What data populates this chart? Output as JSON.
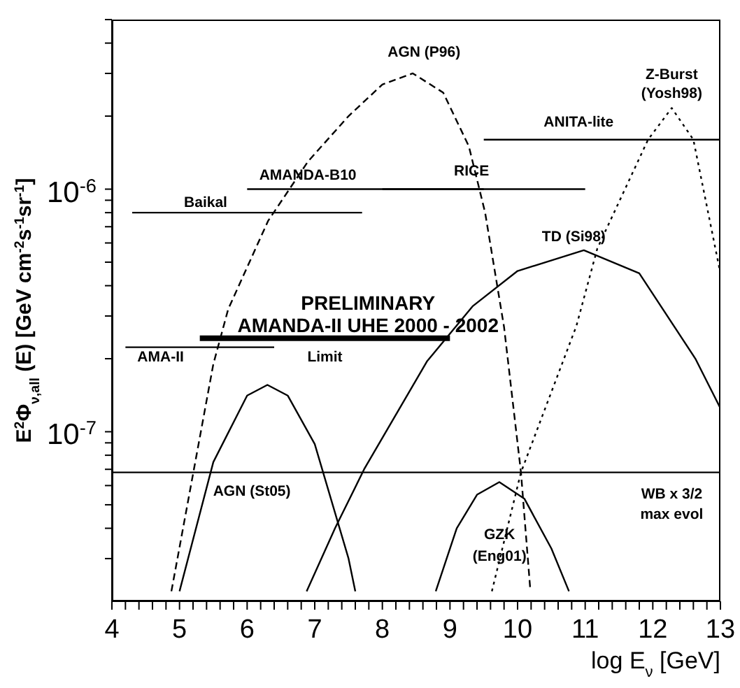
{
  "chart_data": {
    "type": "line",
    "xlabel": "log E$_{ν}$ [GeV]",
    "ylabel": "E$^{2}$Φ$_{ν,all}$ (E) [GeV cm$^{-2}$s$^{-1}$sr$^{-1}$]",
    "log": "y",
    "xlim": [
      4,
      13
    ],
    "xticks": [
      4,
      {
        "value": 4.2,
        "label": null
      },
      {
        "value": 4.4,
        "label": null
      },
      {
        "value": 4.6,
        "label": null
      },
      {
        "value": 4.8,
        "label": null
      },
      5,
      {
        "value": 5.2,
        "label": null
      },
      {
        "value": 5.4,
        "label": null
      },
      {
        "value": 5.6,
        "label": null
      },
      {
        "value": 5.8,
        "label": null
      },
      6,
      {
        "value": 6.2,
        "label": null
      },
      {
        "value": 6.4,
        "label": null
      },
      {
        "value": 6.6,
        "label": null
      },
      {
        "value": 6.8,
        "label": null
      },
      7,
      {
        "value": 7.2,
        "label": null
      },
      {
        "value": 7.4,
        "label": null
      },
      {
        "value": 7.6,
        "label": null
      },
      {
        "value": 7.8,
        "label": null
      },
      8,
      {
        "value": 8.2,
        "label": null
      },
      {
        "value": 8.4,
        "label": null
      },
      {
        "value": 8.6,
        "label": null
      },
      {
        "value": 8.8,
        "label": null
      },
      9,
      {
        "value": 9.2,
        "label": null
      },
      {
        "value": 9.4,
        "label": null
      },
      {
        "value": 9.6,
        "label": null
      },
      {
        "value": 9.8,
        "label": null
      },
      10,
      {
        "value": 10.2,
        "label": null
      },
      {
        "value": 10.4,
        "label": null
      },
      {
        "value": 10.6,
        "label": null
      },
      {
        "value": 10.8,
        "label": null
      },
      11,
      {
        "value": 11.2,
        "label": null
      },
      {
        "value": 11.4,
        "label": null
      },
      {
        "value": 11.6,
        "label": null
      },
      {
        "value": 11.8,
        "label": null
      },
      12,
      {
        "value": 12.2,
        "label": null
      },
      {
        "value": 12.4,
        "label": null
      },
      {
        "value": 12.6,
        "label": null
      },
      {
        "value": 12.8,
        "label": null
      },
      13
    ],
    "ylim": [
      2e-08,
      5e-06
    ],
    "yticks": [
      {
        "value": 3e-08,
        "label": null
      },
      {
        "value": 4e-08,
        "label": null
      },
      {
        "value": 5e-08,
        "label": null
      },
      {
        "value": 6e-08,
        "label": null
      },
      {
        "value": 7e-08,
        "label": null
      },
      {
        "value": 8e-08,
        "label": null
      },
      {
        "value": 9e-08,
        "label": null
      },
      {
        "value": 1e-07,
        "label": "10$^{-7}$"
      },
      {
        "value": 2e-07,
        "label": null
      },
      {
        "value": 3e-07,
        "label": null
      },
      {
        "value": 4e-07,
        "label": null
      },
      {
        "value": 5e-07,
        "label": null
      },
      {
        "value": 6e-07,
        "label": null
      },
      {
        "value": 7e-07,
        "label": null
      },
      {
        "value": 8e-07,
        "label": null
      },
      {
        "value": 9e-07,
        "label": null
      },
      {
        "value": 1e-06,
        "label": "10$^{-6}$"
      },
      {
        "value": 2e-06,
        "label": null
      },
      {
        "value": 3e-06,
        "label": null
      },
      {
        "value": 4e-06,
        "label": null
      },
      {
        "value": 5e-06,
        "label": null
      }
    ],
    "series": [
      {
        "line_style": "solid",
        "color": "#000000",
        "x": [
          5.3,
          9.0
        ],
        "values": [
          2.43e-07,
          2.43e-07
        ]
      },
      {
        "line_style": "solid",
        "color": "#000000",
        "x": [
          4.3,
          7.7
        ],
        "values": [
          8e-07,
          8e-07
        ]
      },
      {
        "line_style": "solid",
        "color": "#000000",
        "x": [
          6.0,
          9.5
        ],
        "values": [
          1e-06,
          1e-06
        ]
      },
      {
        "line_style": "solid",
        "color": "#000000",
        "x": [
          8.0,
          11.0
        ],
        "values": [
          1e-06,
          1e-06
        ]
      },
      {
        "line_style": "solid",
        "color": "#000000",
        "x": [
          9.5,
          13
        ],
        "values": [
          1.6e-06,
          1.6e-06
        ]
      },
      {
        "line_style": "solid",
        "color": "#000000",
        "x": [
          4.2,
          6.4
        ],
        "values": [
          2.23e-07,
          2.23e-07
        ]
      },
      {
        "line_style": "solid",
        "color": "#000000",
        "x": [
          4,
          13
        ],
        "values": [
          6.8e-08,
          6.8e-08
        ]
      },
      {
        "line_style": "solid",
        "color": "#000000",
        "x": [
          5.0,
          5.5,
          6.0,
          6.3,
          6.6,
          7.0,
          7.5,
          7.6
        ],
        "values": [
          2.2e-08,
          7.5e-08,
          1.41e-07,
          1.56e-07,
          1.41e-07,
          8.9e-08,
          3e-08,
          2.2e-08
        ]
      },
      {
        "line_style": "dashed",
        "color": "#000000",
        "x": [
          4.88,
          5.5,
          5.72,
          6.31,
          6.9,
          7.5,
          8.0,
          8.45,
          8.9,
          9.28,
          9.52,
          9.8,
          10.05,
          10.19
        ],
        "values": [
          2.2e-08,
          1.9e-07,
          3.2e-07,
          7.4e-07,
          1.3e-06,
          2e-06,
          2.7e-06,
          3e-06,
          2.5e-06,
          1.5e-06,
          8e-07,
          2.7e-07,
          6.8e-08,
          2.2e-08
        ]
      },
      {
        "line_style": "solid",
        "color": "#000000",
        "x": [
          6.88,
          7.3,
          7.73,
          8.66,
          9.34,
          10.0,
          10.98,
          11.8,
          12.63,
          13
        ],
        "values": [
          2.2e-08,
          4e-08,
          7e-08,
          1.95e-07,
          3.3e-07,
          4.6e-07,
          5.6e-07,
          4.5e-07,
          2e-07,
          1.25e-07
        ]
      },
      {
        "line_style": "solid",
        "color": "#000000",
        "x": [
          8.79,
          9.1,
          9.4,
          9.73,
          10.1,
          10.5,
          10.76
        ],
        "values": [
          2.2e-08,
          4e-08,
          5.5e-08,
          6.2e-08,
          5.3e-08,
          3.3e-08,
          2.2e-08
        ]
      },
      {
        "line_style": "dotted",
        "color": "#000000",
        "x": [
          9.62,
          10.05,
          10.87,
          11.18,
          11.93,
          12.28,
          12.6,
          13
        ],
        "values": [
          2.2e-08,
          6.8e-08,
          2.73e-07,
          5.7e-07,
          1.6e-06,
          2.16e-06,
          1.6e-06,
          4.5e-07
        ]
      }
    ],
    "annotations": [
      "PRELIMINARY",
      "AMANDA-II UHE 2000 - 2002",
      "Limit",
      "AGN (P96)",
      "Z-Burst",
      "(Yosh98)",
      "ANITA-lite",
      "AMANDA-B10",
      "RICE",
      "Baikal",
      "TD (Si98)",
      "AMA-II",
      "AGN (St05)",
      "GZK",
      "(Eng01)",
      "WB x 3/2",
      "max evol"
    ]
  }
}
